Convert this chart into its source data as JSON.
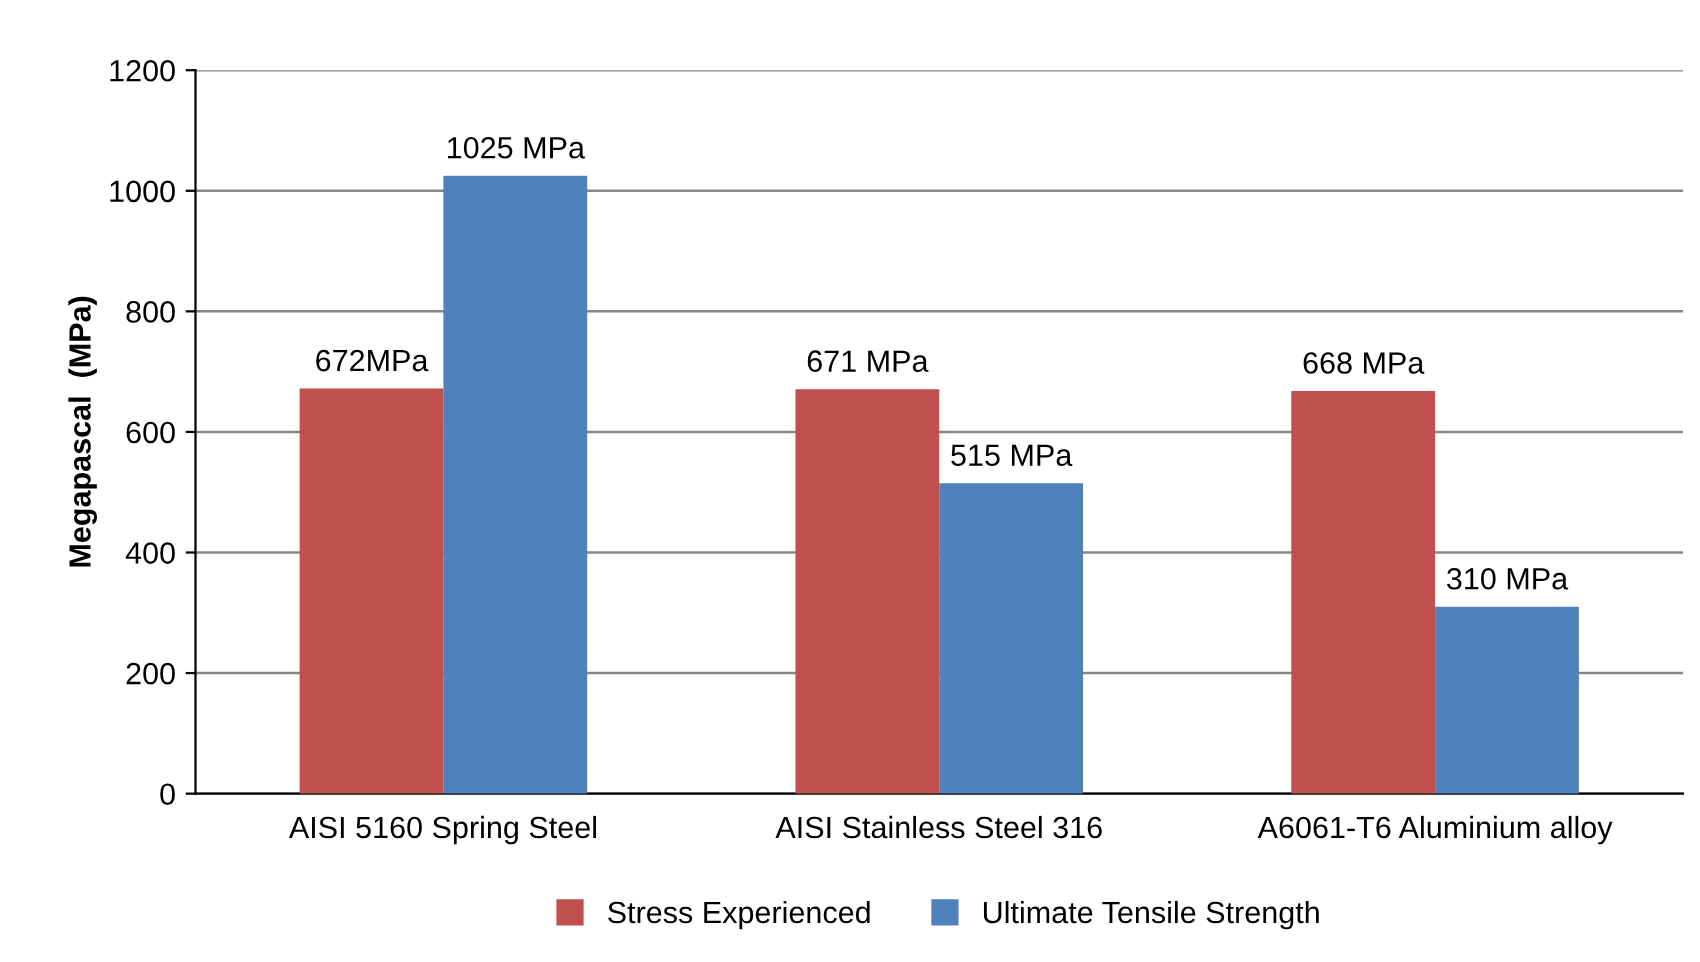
{
  "chart_data": {
    "type": "bar",
    "ylabel": "Megapascal  (MPa)",
    "categories": [
      "AISI 5160 Spring Steel",
      "AISI Stainless Steel 316",
      "A6061-T6 Aluminium alloy"
    ],
    "series": [
      {
        "name": "Stress Experienced",
        "color": "#c0504d",
        "values": [
          672,
          671,
          668
        ],
        "value_labels": [
          "672MPa",
          "671 MPa",
          "668 MPa"
        ]
      },
      {
        "name": "Ultimate Tensile Strength",
        "color": "#4f81bd",
        "values": [
          1025,
          515,
          310
        ],
        "value_labels": [
          "1025 MPa",
          "515 MPa",
          "310 MPa"
        ]
      }
    ],
    "ylim": [
      0,
      1200
    ],
    "yticks": [
      0,
      200,
      400,
      600,
      800,
      1000,
      1200
    ],
    "grid": "y",
    "legend": "bottom"
  }
}
